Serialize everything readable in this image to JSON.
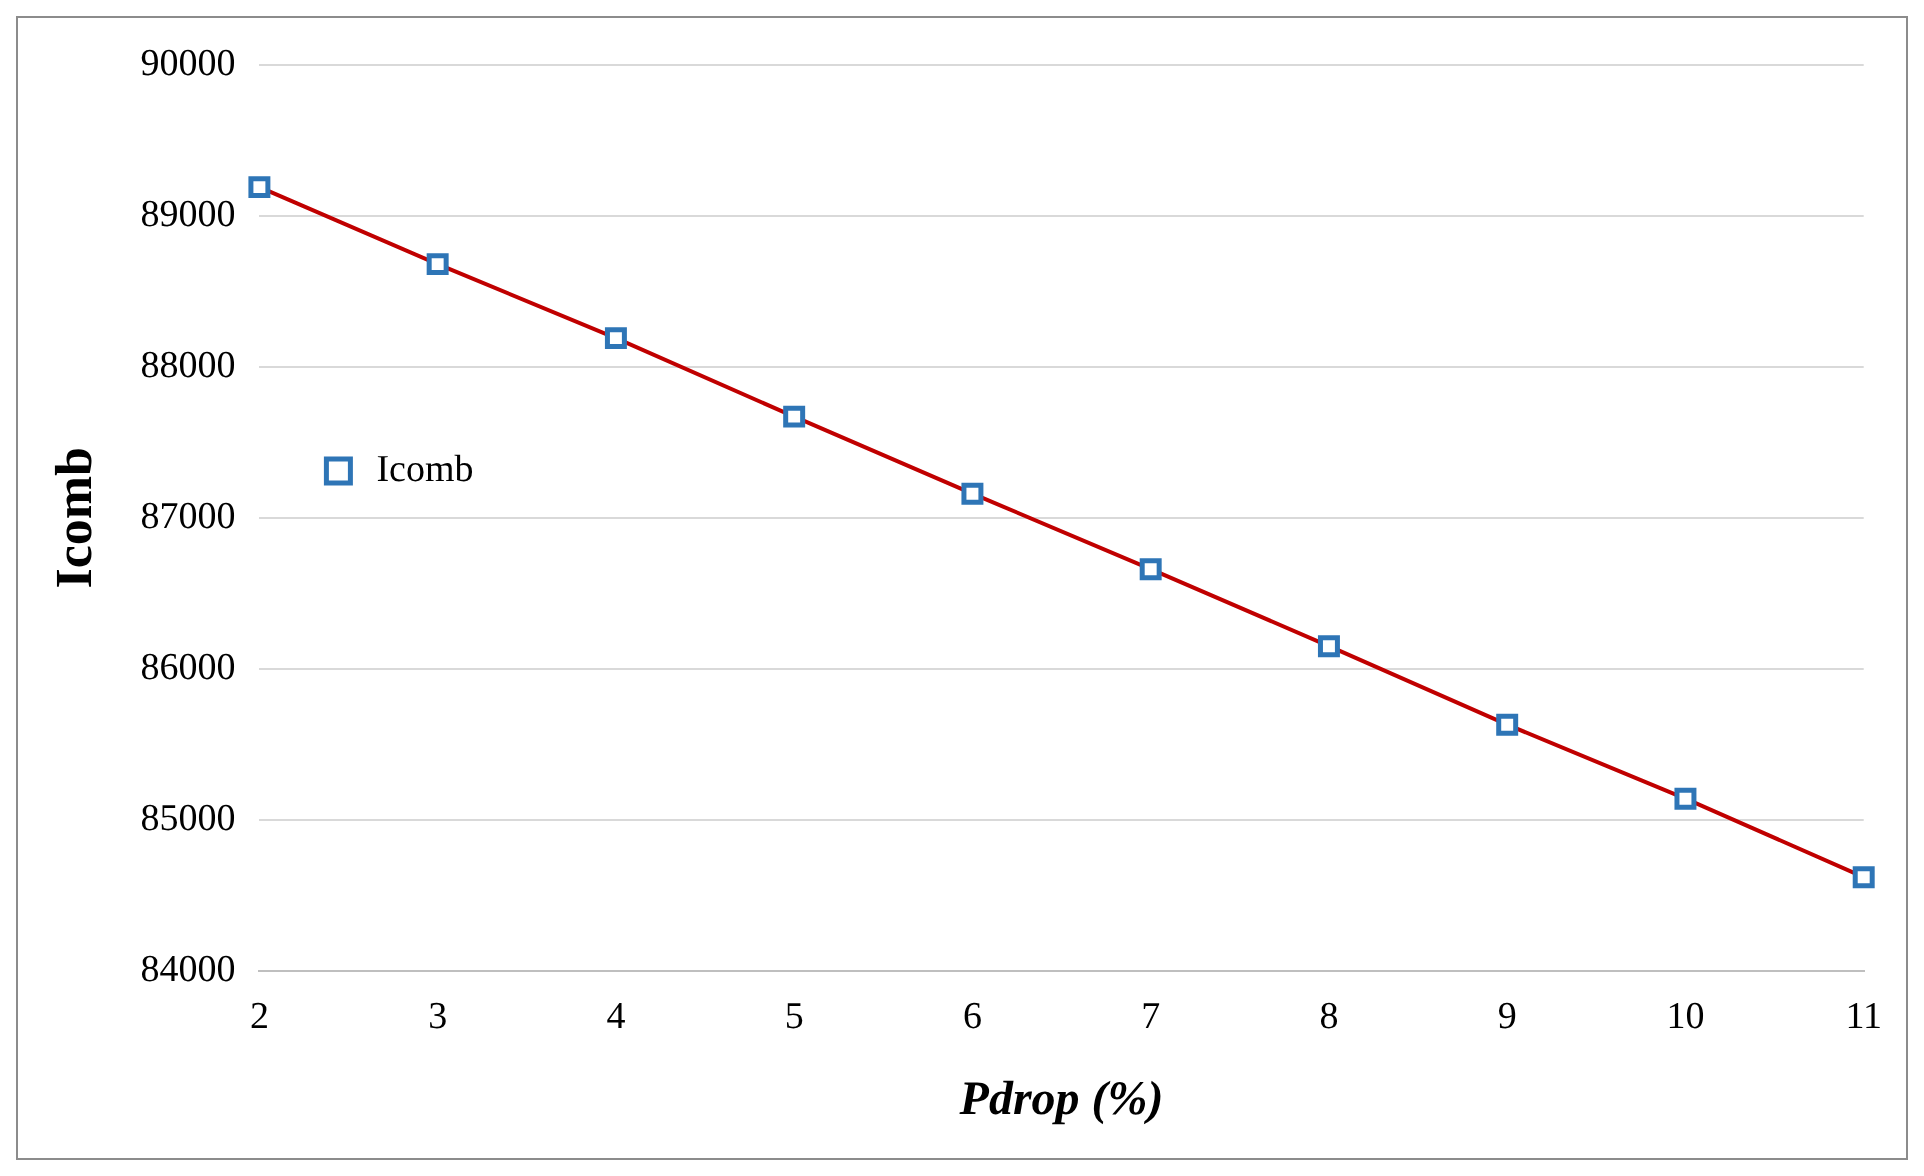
{
  "chart_data": {
    "type": "line",
    "xlabel": "Pdrop (%)",
    "ylabel": "Icomb",
    "categories": [
      "2",
      "3",
      "4",
      "5",
      "6",
      "7",
      "8",
      "9",
      "10",
      "11"
    ],
    "series": [
      {
        "name": "Icomb",
        "color": "#c00000",
        "values": [
          89190,
          88680,
          88190,
          87670,
          87160,
          86660,
          86150,
          85630,
          85140,
          84620
        ]
      }
    ],
    "ylim": [
      84000,
      90000
    ],
    "yticks": [
      84000,
      85000,
      86000,
      87000,
      88000,
      89000,
      90000
    ],
    "grid": "y",
    "legend": "top",
    "marker": "square",
    "line_style": "solid"
  }
}
